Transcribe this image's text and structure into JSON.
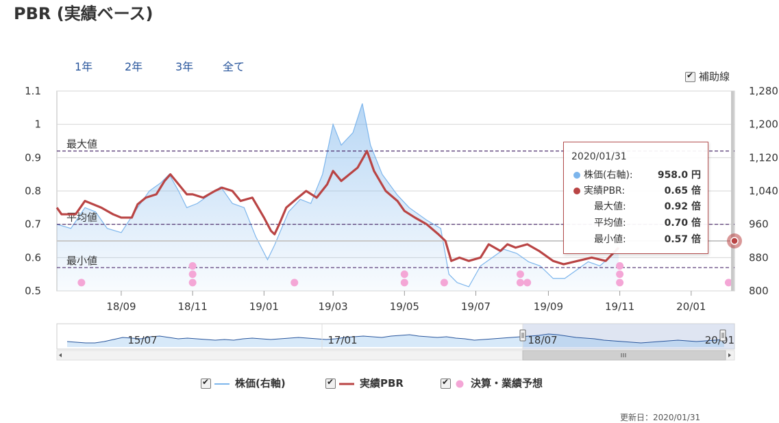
{
  "header": {
    "title": "PBR (実績ベース)"
  },
  "range_buttons": [
    "1年",
    "2年",
    "3年",
    "全て"
  ],
  "aux_lines_label": "補助線",
  "legend": [
    {
      "label": "株価(右軸)",
      "color": "#7cb5ec"
    },
    {
      "label": "実績PBR",
      "color": "#b94444"
    },
    {
      "label": "決算・業績予想",
      "color": "#f4a6d6"
    }
  ],
  "tooltip": {
    "date": "2020/01/31",
    "rows": [
      {
        "label": "株価(右軸):",
        "value": "958.0 円",
        "dot_color": "#7cb5ec"
      },
      {
        "label": "実績PBR:",
        "value": "0.65 倍",
        "dot_color": "#b94444"
      },
      {
        "label": "最大値:",
        "value": "0.92 倍"
      },
      {
        "label": "平均値:",
        "value": "0.70 倍"
      },
      {
        "label": "最小値:",
        "value": "0.57 倍"
      }
    ]
  },
  "footer": "更新日：2020/01/31",
  "chart_data": {
    "type": "line",
    "x_start": "2018-07-08",
    "x_end": "2020-02-07",
    "x_tick_labels": [
      "18/09",
      "18/11",
      "19/01",
      "19/03",
      "19/05",
      "19/07",
      "19/09",
      "19/11",
      "20/01"
    ],
    "x_tick_dates": [
      "2018-09-01",
      "2018-11-01",
      "2019-01-01",
      "2019-03-01",
      "2019-05-01",
      "2019-07-01",
      "2019-09-01",
      "2019-11-01",
      "2020-01-01"
    ],
    "y_left": {
      "min": 0.5,
      "max": 1.1,
      "ticks": [
        "0.5",
        "0.6",
        "0.7",
        "0.8",
        "0.9",
        "1",
        "1.1"
      ]
    },
    "y_right": {
      "min": 800,
      "max": 1280,
      "ticks": [
        "800",
        "880",
        "960",
        "1,040",
        "1,120",
        "1,200",
        "1,280"
      ]
    },
    "reference_lines": [
      {
        "label": "最大値",
        "value": 0.92
      },
      {
        "label": "平均値",
        "value": 0.7
      },
      {
        "label": "最小値",
        "value": 0.57
      }
    ],
    "current_value_line": 0.65,
    "series": [
      {
        "name": "実績PBR",
        "axis": "left",
        "color": "#b94444",
        "points": [
          [
            "2018-07-08",
            0.75
          ],
          [
            "2018-07-12",
            0.73
          ],
          [
            "2018-07-24",
            0.73
          ],
          [
            "2018-08-01",
            0.77
          ],
          [
            "2018-08-15",
            0.75
          ],
          [
            "2018-08-25",
            0.73
          ],
          [
            "2018-09-01",
            0.72
          ],
          [
            "2018-09-10",
            0.72
          ],
          [
            "2018-09-15",
            0.76
          ],
          [
            "2018-09-22",
            0.78
          ],
          [
            "2018-10-01",
            0.79
          ],
          [
            "2018-10-08",
            0.83
          ],
          [
            "2018-10-13",
            0.85
          ],
          [
            "2018-10-20",
            0.82
          ],
          [
            "2018-10-27",
            0.79
          ],
          [
            "2018-11-01",
            0.79
          ],
          [
            "2018-11-10",
            0.78
          ],
          [
            "2018-11-20",
            0.8
          ],
          [
            "2018-11-26",
            0.81
          ],
          [
            "2018-12-05",
            0.8
          ],
          [
            "2018-12-12",
            0.77
          ],
          [
            "2018-12-22",
            0.78
          ],
          [
            "2019-01-01",
            0.72
          ],
          [
            "2019-01-07",
            0.68
          ],
          [
            "2019-01-10",
            0.67
          ],
          [
            "2019-01-14",
            0.7
          ],
          [
            "2019-01-20",
            0.75
          ],
          [
            "2019-01-30",
            0.78
          ],
          [
            "2019-02-06",
            0.8
          ],
          [
            "2019-02-15",
            0.78
          ],
          [
            "2019-02-24",
            0.82
          ],
          [
            "2019-03-01",
            0.86
          ],
          [
            "2019-03-08",
            0.83
          ],
          [
            "2019-03-15",
            0.85
          ],
          [
            "2019-03-22",
            0.87
          ],
          [
            "2019-03-30",
            0.92
          ],
          [
            "2019-04-05",
            0.86
          ],
          [
            "2019-04-15",
            0.8
          ],
          [
            "2019-04-25",
            0.77
          ],
          [
            "2019-05-01",
            0.74
          ],
          [
            "2019-05-10",
            0.72
          ],
          [
            "2019-05-20",
            0.7
          ],
          [
            "2019-05-30",
            0.67
          ],
          [
            "2019-06-05",
            0.65
          ],
          [
            "2019-06-10",
            0.59
          ],
          [
            "2019-06-17",
            0.6
          ],
          [
            "2019-06-25",
            0.59
          ],
          [
            "2019-07-05",
            0.6
          ],
          [
            "2019-07-12",
            0.64
          ],
          [
            "2019-07-22",
            0.62
          ],
          [
            "2019-07-28",
            0.64
          ],
          [
            "2019-08-04",
            0.63
          ],
          [
            "2019-08-14",
            0.64
          ],
          [
            "2019-08-24",
            0.62
          ],
          [
            "2019-09-05",
            0.59
          ],
          [
            "2019-09-14",
            0.58
          ],
          [
            "2019-09-26",
            0.59
          ],
          [
            "2019-10-08",
            0.6
          ],
          [
            "2019-10-20",
            0.59
          ],
          [
            "2019-10-31",
            0.63
          ]
        ]
      },
      {
        "name": "株価(右軸)",
        "axis": "right",
        "color": "#7cb5ec",
        "points": [
          [
            "2018-07-08",
            960
          ],
          [
            "2018-07-20",
            950
          ],
          [
            "2018-08-01",
            1000
          ],
          [
            "2018-08-10",
            990
          ],
          [
            "2018-08-20",
            950
          ],
          [
            "2018-09-01",
            940
          ],
          [
            "2018-09-15",
            1000
          ],
          [
            "2018-09-25",
            1040
          ],
          [
            "2018-10-05",
            1060
          ],
          [
            "2018-10-12",
            1080
          ],
          [
            "2018-10-20",
            1040
          ],
          [
            "2018-10-27",
            1000
          ],
          [
            "2018-11-05",
            1010
          ],
          [
            "2018-11-15",
            1030
          ],
          [
            "2018-11-25",
            1050
          ],
          [
            "2018-12-05",
            1010
          ],
          [
            "2018-12-15",
            1000
          ],
          [
            "2018-12-25",
            930
          ],
          [
            "2019-01-04",
            875
          ],
          [
            "2019-01-10",
            910
          ],
          [
            "2019-01-22",
            990
          ],
          [
            "2019-02-01",
            1020
          ],
          [
            "2019-02-10",
            1010
          ],
          [
            "2019-02-20",
            1080
          ],
          [
            "2019-03-01",
            1200
          ],
          [
            "2019-03-08",
            1150
          ],
          [
            "2019-03-18",
            1180
          ],
          [
            "2019-03-26",
            1250
          ],
          [
            "2019-04-02",
            1150
          ],
          [
            "2019-04-12",
            1080
          ],
          [
            "2019-04-25",
            1030
          ],
          [
            "2019-05-05",
            1000
          ],
          [
            "2019-05-20",
            970
          ],
          [
            "2019-06-01",
            950
          ],
          [
            "2019-06-08",
            840
          ],
          [
            "2019-06-15",
            820
          ],
          [
            "2019-06-25",
            810
          ],
          [
            "2019-07-05",
            860
          ],
          [
            "2019-07-15",
            880
          ],
          [
            "2019-07-25",
            900
          ],
          [
            "2019-08-05",
            890
          ],
          [
            "2019-08-15",
            870
          ],
          [
            "2019-08-25",
            860
          ],
          [
            "2019-09-05",
            830
          ],
          [
            "2019-09-15",
            830
          ],
          [
            "2019-09-25",
            850
          ],
          [
            "2019-10-05",
            870
          ],
          [
            "2019-10-15",
            860
          ],
          [
            "2019-10-31",
            900
          ]
        ]
      },
      {
        "name": "決算・業績予想",
        "type": "scatter",
        "color": "#f4a6d6",
        "points": [
          [
            "2018-07-29",
            0.525
          ],
          [
            "2018-11-01",
            0.575
          ],
          [
            "2018-11-01",
            0.55
          ],
          [
            "2018-11-01",
            0.525
          ],
          [
            "2019-01-27",
            0.525
          ],
          [
            "2019-05-01",
            0.55
          ],
          [
            "2019-05-01",
            0.525
          ],
          [
            "2019-06-04",
            0.525
          ],
          [
            "2019-08-08",
            0.55
          ],
          [
            "2019-08-08",
            0.525
          ],
          [
            "2019-08-14",
            0.525
          ],
          [
            "2019-11-01",
            0.575
          ],
          [
            "2019-11-01",
            0.55
          ],
          [
            "2019-11-01",
            0.525
          ],
          [
            "2020-02-02",
            0.525
          ]
        ]
      }
    ],
    "navigator": {
      "tick_labels": [
        "15/07",
        "17/01",
        "18/07",
        "20/01"
      ]
    },
    "legend_position": "bottom"
  }
}
